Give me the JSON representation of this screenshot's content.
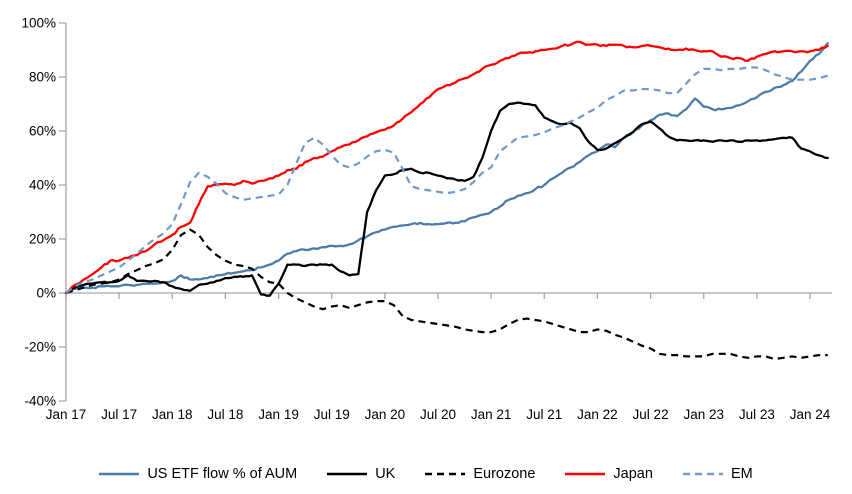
{
  "chart_data": {
    "type": "line",
    "title": "",
    "y_axis": {
      "min": -40,
      "max": 100,
      "step": 20,
      "unit": "%"
    },
    "y_tick_labels": [
      "100%",
      "80%",
      "60%",
      "40%",
      "20%",
      "0%",
      "-20%",
      "-40%"
    ],
    "x_tick_labels": [
      "Jan 17",
      "Jul 17",
      "Jan 18",
      "Jul 18",
      "Jan 19",
      "Jul 19",
      "Jan 20",
      "Jul 20",
      "Jan 21",
      "Jul 21",
      "Jan 22",
      "Jul 22",
      "Jan 23",
      "Jul 23",
      "Jan 24"
    ],
    "x_axis": {
      "start": "Jan 2017",
      "end": "Mar 2024",
      "resolution": "monthly",
      "tick_every_months": 6
    },
    "grid": false,
    "axis_color": "#a6a6a6",
    "legend_position": "bottom",
    "series": [
      {
        "name": "US ETF flow % of AUM",
        "style": "solid",
        "color": "#4c7da8",
        "values": [
          0,
          1.5,
          2,
          2,
          2.5,
          2.5,
          2.5,
          3,
          3,
          3.5,
          3.5,
          4,
          4.5,
          6.5,
          5,
          5,
          5.5,
          6.5,
          7,
          7.5,
          8,
          8.5,
          9.5,
          10.5,
          12,
          14.5,
          15.5,
          16,
          16.5,
          17,
          17.5,
          17.5,
          18,
          19.5,
          21,
          22.5,
          23.5,
          24.5,
          25,
          25.5,
          26,
          25.5,
          25.5,
          26,
          26,
          26.5,
          28,
          29,
          30,
          32,
          34.5,
          36,
          37,
          38.5,
          40,
          42.5,
          44.5,
          46.5,
          48.5,
          51,
          52.5,
          55,
          54,
          57.5,
          59.5,
          62,
          64,
          66,
          66.5,
          65.5,
          68,
          72,
          69,
          68,
          68,
          68.5,
          69.5,
          71,
          72.5,
          74.5,
          76,
          77,
          78.5,
          82,
          86,
          88.5,
          92.5
        ]
      },
      {
        "name": "UK",
        "style": "solid",
        "color": "#000000",
        "values": [
          0,
          2,
          3,
          3.5,
          4,
          4,
          4.5,
          6.5,
          4.5,
          4.5,
          4.5,
          4,
          2.5,
          1.5,
          0.8,
          3,
          3.5,
          4.5,
          5.5,
          6,
          6,
          6.5,
          -0.5,
          -1,
          3.5,
          10.5,
          10.5,
          10,
          10.5,
          10.5,
          10.5,
          8,
          6.5,
          7,
          30,
          38,
          43.5,
          44,
          45.5,
          46,
          44.5,
          44.5,
          43.5,
          42.5,
          42,
          41.5,
          43,
          50,
          60,
          67.5,
          70,
          70.5,
          70,
          69.5,
          65,
          63.5,
          62.5,
          63,
          61,
          56,
          53,
          53.5,
          55.5,
          57.5,
          59.5,
          62.5,
          63.5,
          61,
          58,
          56.5,
          56.5,
          56.5,
          56.5,
          56,
          56.5,
          56.5,
          56,
          56.5,
          56.5,
          56.5,
          57,
          57.5,
          57.5,
          53.5,
          52.5,
          51,
          50
        ]
      },
      {
        "name": "Eurozone",
        "style": "dashed",
        "color": "#000000",
        "values": [
          0,
          1,
          2,
          3,
          3.5,
          4,
          5,
          7,
          8.5,
          10,
          11,
          12.5,
          16,
          21.5,
          23.5,
          21.5,
          17,
          14,
          12,
          10.5,
          10,
          9,
          6,
          4,
          3.5,
          0,
          -2,
          -3.5,
          -5,
          -6,
          -5,
          -4.5,
          -5.5,
          -4.5,
          -3.5,
          -3,
          -3,
          -4.5,
          -8.5,
          -10,
          -10.5,
          -11,
          -11.5,
          -12,
          -12.5,
          -13.5,
          -14,
          -14.5,
          -14.5,
          -13.5,
          -11.5,
          -10,
          -9.5,
          -10,
          -10.5,
          -11.5,
          -12.5,
          -13.5,
          -14.5,
          -14.5,
          -13.5,
          -14,
          -15.5,
          -16.5,
          -18,
          -19.5,
          -20.5,
          -22.5,
          -23,
          -23,
          -23.5,
          -23.5,
          -23.5,
          -22.5,
          -22.5,
          -22.5,
          -23.5,
          -24,
          -23.5,
          -23.5,
          -24.5,
          -24,
          -23.5,
          -24,
          -23.5,
          -23,
          -23
        ]
      },
      {
        "name": "Japan",
        "style": "solid",
        "color": "#fe0000",
        "values": [
          0,
          3,
          5,
          7,
          9.5,
          12,
          12,
          13,
          14,
          15.5,
          18,
          19.5,
          21.5,
          24.5,
          26,
          33,
          39.5,
          40,
          40.5,
          40,
          41.5,
          40.5,
          41.5,
          42.5,
          43.5,
          45.5,
          46,
          48.5,
          50,
          50.5,
          52.5,
          54,
          55,
          56.5,
          58,
          59.5,
          60.5,
          62,
          64.5,
          67,
          70,
          72.5,
          75.5,
          77,
          78,
          79.5,
          81,
          83,
          84.5,
          86,
          87,
          88.5,
          89,
          89.5,
          90,
          90.5,
          91.5,
          92,
          93,
          92,
          92,
          91.5,
          92,
          91.5,
          91,
          91.5,
          91.5,
          91,
          90.5,
          90,
          90.5,
          90,
          89.5,
          89.5,
          87.5,
          87,
          87,
          86,
          87.5,
          88.5,
          89.5,
          89.5,
          89.5,
          89.5,
          89.5,
          90,
          91.5
        ]
      },
      {
        "name": "EM",
        "style": "dashed",
        "color": "#6f9ac8",
        "values": [
          0,
          2.5,
          4,
          5,
          6.5,
          8,
          9.5,
          12,
          14.5,
          17.5,
          20,
          22,
          25.5,
          33,
          41,
          44.5,
          43,
          40.5,
          37,
          35.5,
          34.5,
          35,
          35.5,
          36,
          36.5,
          40,
          48,
          55.5,
          57.5,
          55,
          51,
          47.5,
          46.5,
          48,
          50.5,
          52.5,
          53,
          52,
          46,
          39.5,
          38.5,
          38,
          37.5,
          37,
          37.5,
          38.5,
          41,
          44.5,
          46.5,
          52.5,
          55,
          57.5,
          58,
          58.5,
          59.5,
          61,
          62,
          63.5,
          65,
          67,
          68.5,
          71.5,
          73,
          75,
          75,
          75.5,
          75.5,
          75,
          74,
          74,
          77.5,
          81,
          83,
          83,
          82.5,
          83,
          83,
          83.5,
          83.5,
          82.5,
          81,
          80,
          79,
          79,
          79,
          79.5,
          80.5
        ]
      }
    ],
    "legend_entries": [
      "US ETF flow % of AUM",
      "UK",
      "Eurozone",
      "Japan",
      "EM"
    ]
  }
}
